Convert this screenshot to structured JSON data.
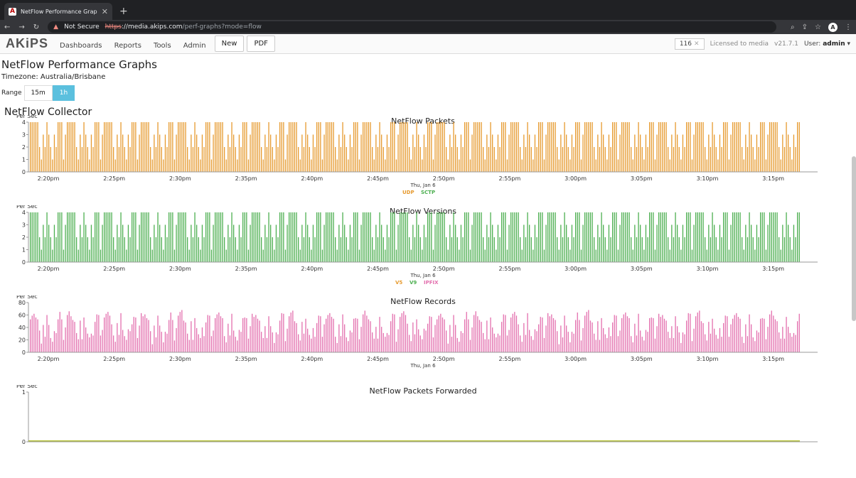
{
  "browser": {
    "tab_title": "NetFlow Performance Graphs",
    "tab_icon": "akips-favicon",
    "warning": "Not Secure",
    "url_scheme": "https",
    "url_host": "://media.akips.com",
    "url_path": "/perf-graphs?mode=flow",
    "avatar_letter": "A"
  },
  "app": {
    "logo": "AKiPS",
    "nav": [
      "Dashboards",
      "Reports",
      "Tools",
      "Admin"
    ],
    "btn_new": "New",
    "btn_pdf": "PDF",
    "count": "116",
    "license": "Licensed to media",
    "version": "v21.7.1",
    "user_label": "User:",
    "user_name": "admin"
  },
  "page": {
    "title": "NetFlow Performance Graphs",
    "timezone": "Timezone: Australia/Brisbane",
    "range_label": "Range",
    "range_options": [
      "15m",
      "1h"
    ],
    "range_selected": "1h",
    "section": "NetFlow Collector"
  },
  "colors": {
    "udp": "#e69a2e",
    "v9": "#4caf50",
    "ipfix": "#e36fae",
    "forward": "#b7c23a",
    "accent": "#5bc0de"
  },
  "chart_data": [
    {
      "type": "bar",
      "title": "NetFlow Packets",
      "ylabel": "Per Sec",
      "ylim": [
        0,
        4
      ],
      "yticks": [
        0,
        1,
        2,
        3,
        4
      ],
      "x": [
        "2:20pm",
        "2:25pm",
        "2:30pm",
        "2:35pm",
        "2:40pm",
        "2:45pm",
        "2:50pm",
        "2:55pm",
        "3:00pm",
        "3:05pm",
        "3:10pm",
        "3:15pm"
      ],
      "xsub": "Thu, Jan 6",
      "series": [
        {
          "name": "UDP",
          "color": "#e69a2e",
          "pattern": [
            4,
            1,
            3,
            4,
            2,
            4,
            1,
            4,
            3,
            2,
            4,
            1,
            4,
            3,
            4,
            2
          ]
        },
        {
          "name": "SCTP",
          "color": "#4caf50",
          "pattern": []
        }
      ],
      "legend": [
        "UDP",
        "SCTP"
      ]
    },
    {
      "type": "bar",
      "title": "NetFlow Versions",
      "ylabel": "Per Sec",
      "ylim": [
        0,
        4
      ],
      "yticks": [
        0,
        1,
        2,
        3,
        4
      ],
      "x": [
        "2:20pm",
        "2:25pm",
        "2:30pm",
        "2:35pm",
        "2:40pm",
        "2:45pm",
        "2:50pm",
        "2:55pm",
        "3:00pm",
        "3:05pm",
        "3:10pm",
        "3:15pm"
      ],
      "xsub": "Thu, Jan 6",
      "series": [
        {
          "name": "V5",
          "color": "#e69a2e",
          "pattern": []
        },
        {
          "name": "V9",
          "color": "#4caf50",
          "pattern": [
            4,
            1,
            3,
            4,
            2,
            4,
            1,
            4,
            3,
            2,
            4,
            1,
            4,
            3,
            4,
            2
          ]
        },
        {
          "name": "IPFIX",
          "color": "#e36fae",
          "pattern": []
        }
      ],
      "legend": [
        "V5",
        "V9",
        "IPFIX"
      ]
    },
    {
      "type": "bar",
      "title": "NetFlow Records",
      "ylabel": "Per Sec",
      "ylim": [
        0,
        80
      ],
      "yticks": [
        0,
        20,
        40,
        60,
        80
      ],
      "x": [
        "2:20pm",
        "2:25pm",
        "2:30pm",
        "2:35pm",
        "2:40pm",
        "2:45pm",
        "2:50pm",
        "2:55pm",
        "3:00pm",
        "3:05pm",
        "3:10pm",
        "3:15pm"
      ],
      "xsub": "Thu, Jan 6",
      "series": [
        {
          "name": "IPFIX",
          "color": "#e36fae",
          "pattern": [
            58,
            22,
            46,
            60,
            30,
            55,
            20,
            62,
            40,
            25,
            57,
            18,
            50,
            35,
            63,
            28
          ]
        }
      ],
      "legend": []
    },
    {
      "type": "bar",
      "title": "NetFlow Packets Forwarded",
      "ylabel": "Per Sec",
      "ylim": [
        0,
        1
      ],
      "yticks": [
        0,
        1
      ],
      "x": [],
      "xsub": "",
      "series": [
        {
          "name": "Forwarded",
          "color": "#b7c23a",
          "pattern": [
            0
          ]
        }
      ],
      "legend": []
    }
  ]
}
